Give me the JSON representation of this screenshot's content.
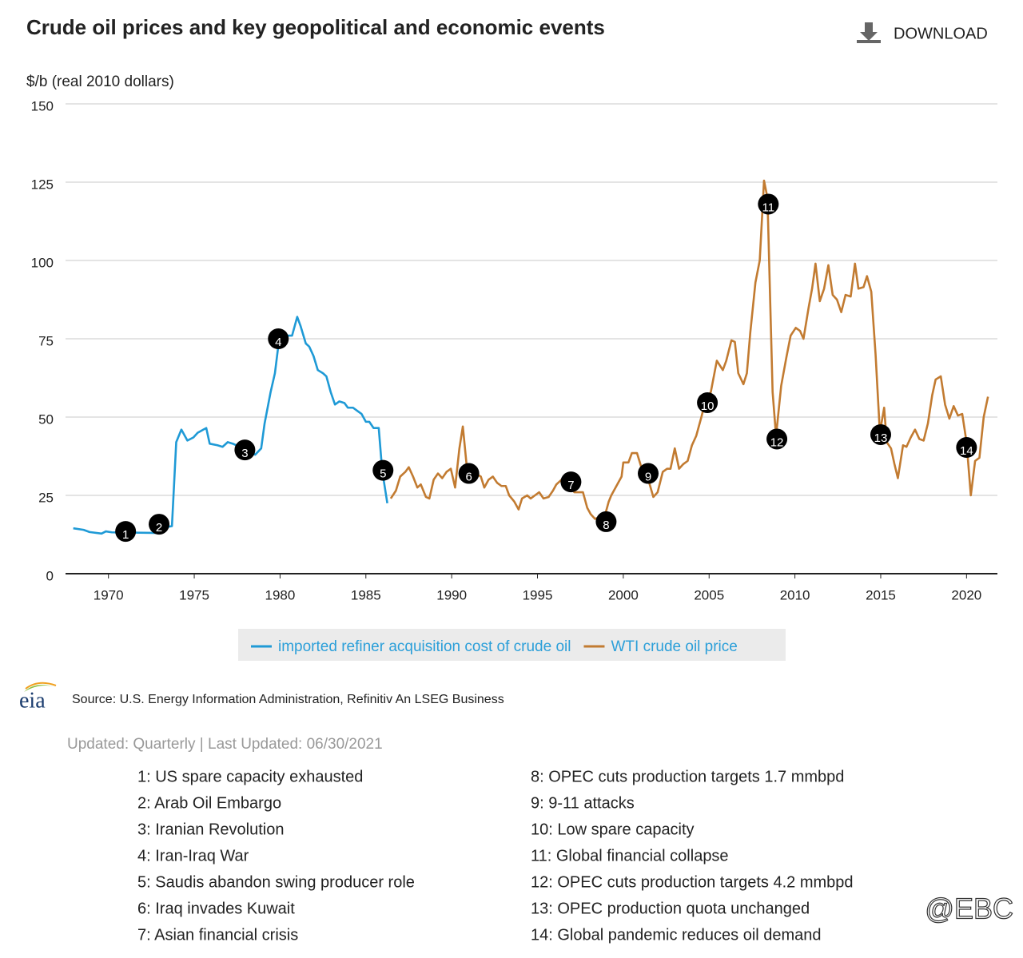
{
  "chart_data": {
    "type": "line",
    "title": "Crude oil prices and key geopolitical and economic events",
    "ylabel": "$/b (real 2010 dollars)",
    "xlim": [
      1967.5,
      2021.8
    ],
    "ylim": [
      0,
      150
    ],
    "xticks": [
      1970,
      1975,
      1980,
      1985,
      1990,
      1995,
      2000,
      2005,
      2010,
      2015,
      2020
    ],
    "yticks": [
      0,
      25,
      50,
      75,
      100,
      125,
      150
    ],
    "grid": true,
    "legend": "bottom",
    "series": [
      {
        "name": "imported refiner acquisition cost of crude oil",
        "color": "#1f9ad6",
        "x": [
          1967.95,
          1968.55,
          1968.9,
          1969.6,
          1969.85,
          1970.2,
          1973.0,
          1973.5,
          1973.7,
          1973.95,
          1974.25,
          1974.6,
          1974.95,
          1975.2,
          1975.7,
          1975.9,
          1976.35,
          1976.65,
          1976.95,
          1977.25,
          1977.85,
          1978.55,
          1978.9,
          1979.1,
          1979.45,
          1979.7,
          1979.95,
          1980.4,
          1980.7,
          1981.0,
          1981.2,
          1981.5,
          1981.7,
          1981.95,
          1982.2,
          1982.5,
          1982.7,
          1982.95,
          1983.2,
          1983.45,
          1983.75,
          1983.95,
          1984.25,
          1984.5,
          1984.75,
          1985.0,
          1985.2,
          1985.45,
          1985.75,
          1985.95,
          1986.25
        ],
        "values": [
          14.5,
          14,
          13.3,
          12.8,
          13.5,
          13.2,
          13,
          15,
          15.2,
          42,
          46,
          42.5,
          43.5,
          45,
          46.5,
          41.5,
          41,
          40.5,
          42,
          41.5,
          40,
          38,
          40,
          48,
          58,
          64,
          75,
          76,
          76,
          82,
          79,
          73.5,
          72.5,
          69.5,
          65,
          64,
          63,
          58,
          54,
          55,
          54.5,
          53,
          53,
          52,
          51,
          48.5,
          48.5,
          46.5,
          46.5,
          33,
          22.5
        ]
      },
      {
        "name": "WTI crude oil price",
        "color": "#c27b31",
        "x": [
          1986.45,
          1986.75,
          1987.0,
          1987.3,
          1987.5,
          1987.75,
          1988.0,
          1988.2,
          1988.5,
          1988.7,
          1988.95,
          1989.2,
          1989.45,
          1989.7,
          1989.95,
          1990.2,
          1990.45,
          1990.65,
          1990.9,
          1991.2,
          1991.4,
          1991.7,
          1991.9,
          1992.15,
          1992.4,
          1992.65,
          1992.9,
          1993.15,
          1993.35,
          1993.65,
          1993.9,
          1994.1,
          1994.4,
          1994.6,
          1994.85,
          1995.1,
          1995.35,
          1995.65,
          1995.9,
          1996.1,
          1996.4,
          1996.6,
          1996.9,
          1997.15,
          1997.4,
          1997.65,
          1997.9,
          1998.1,
          1998.35,
          1998.6,
          1998.9,
          1999.15,
          1999.3,
          1999.6,
          1999.9,
          2000.0,
          2000.3,
          2000.5,
          2000.8,
          2001.05,
          2001.3,
          2001.75,
          2002.0,
          2002.3,
          2002.55,
          2002.75,
          2003.0,
          2003.25,
          2003.5,
          2003.75,
          2004.0,
          2004.25,
          2004.55,
          2004.8,
          2005.1,
          2005.45,
          2005.8,
          2006.0,
          2006.3,
          2006.5,
          2006.7,
          2007.0,
          2007.2,
          2007.4,
          2007.7,
          2007.95,
          2008.2,
          2008.4,
          2008.7,
          2008.9,
          2009.2,
          2009.5,
          2009.75,
          2010.05,
          2010.3,
          2010.5,
          2010.8,
          2011.0,
          2011.2,
          2011.45,
          2011.7,
          2011.95,
          2012.2,
          2012.45,
          2012.7,
          2012.95,
          2013.25,
          2013.5,
          2013.7,
          2014.0,
          2014.2,
          2014.45,
          2014.7,
          2014.95,
          2015.2,
          2015.35,
          2015.6,
          2015.8,
          2016.0,
          2016.3,
          2016.5,
          2016.75,
          2017.0,
          2017.25,
          2017.5,
          2017.75,
          2018.0,
          2018.2,
          2018.5,
          2018.75,
          2019.0,
          2019.25,
          2019.5,
          2019.75,
          2020.0,
          2020.25,
          2020.5,
          2020.75,
          2021.0,
          2021.25
        ],
        "values": [
          24,
          26.5,
          31,
          32.5,
          34,
          31,
          27.5,
          28.5,
          24.5,
          24,
          30,
          32,
          30.5,
          32.5,
          33.5,
          27.5,
          40,
          47,
          33,
          31.5,
          32,
          31,
          27.5,
          30,
          31,
          29,
          28,
          28,
          25,
          23,
          20.5,
          24,
          25,
          24,
          25,
          26,
          24,
          24.5,
          26.5,
          28.5,
          30,
          29.5,
          28,
          26,
          26,
          26,
          21,
          19,
          17.5,
          18,
          18,
          23,
          25,
          28,
          31,
          35.5,
          35.5,
          38.5,
          38.5,
          34,
          33,
          24.5,
          26,
          32.5,
          33.5,
          33.5,
          40,
          33.5,
          35,
          36,
          41,
          44,
          50,
          55.5,
          58,
          68,
          65,
          68,
          74.5,
          74,
          64,
          60.5,
          64,
          77,
          93,
          100,
          125.5,
          120,
          58,
          44,
          60,
          69,
          76,
          78.5,
          77.5,
          75,
          85,
          91,
          99,
          87,
          91,
          98.5,
          89,
          87.5,
          83.5,
          89,
          88.5,
          99,
          91,
          91.5,
          95,
          90,
          70,
          45,
          53,
          42,
          40,
          35,
          30.5,
          41,
          40.5,
          43.5,
          46,
          43,
          42.5,
          48,
          57,
          62,
          63,
          54,
          49.5,
          53.5,
          50.5,
          51,
          42,
          25,
          36,
          37,
          50,
          56.5
        ]
      }
    ],
    "annotations": [
      {
        "label": "1",
        "x": 1971.0,
        "y": 13.5
      },
      {
        "label": "2",
        "x": 1972.95,
        "y": 15.8
      },
      {
        "label": "3",
        "x": 1977.95,
        "y": 39.5
      },
      {
        "label": "4",
        "x": 1979.9,
        "y": 75
      },
      {
        "label": "5",
        "x": 1986.0,
        "y": 33
      },
      {
        "label": "6",
        "x": 1991.0,
        "y": 32
      },
      {
        "label": "7",
        "x": 1996.95,
        "y": 29.3
      },
      {
        "label": "8",
        "x": 1999.0,
        "y": 16.6
      },
      {
        "label": "9",
        "x": 2001.45,
        "y": 32
      },
      {
        "label": "10",
        "x": 2004.9,
        "y": 54.6
      },
      {
        "label": "11",
        "x": 2008.45,
        "y": 118
      },
      {
        "label": "12",
        "x": 2008.95,
        "y": 43
      },
      {
        "label": "13",
        "x": 2015.0,
        "y": 44.4
      },
      {
        "label": "14",
        "x": 2020.0,
        "y": 40.3
      }
    ]
  },
  "download": "DOWNLOAD",
  "logo": "eia",
  "source": "Source: U.S. Energy Information Administration, Refinitiv An LSEG Business",
  "updated": "Updated: Quarterly | Last Updated: 06/30/2021",
  "events": [
    "1: US spare capacity exhausted",
    "2: Arab Oil Embargo",
    "3: Iranian Revolution",
    "4: Iran-Iraq War",
    "5: Saudis abandon swing producer role",
    "6: Iraq invades Kuwait",
    "7: Asian financial crisis",
    "8: OPEC cuts production targets 1.7 mmbpd",
    "9: 9-11 attacks",
    "10: Low spare capacity",
    "11: Global financial collapse",
    "12: OPEC cuts production targets 4.2 mmbpd",
    "13: OPEC production quota unchanged",
    "14: Global pandemic reduces oil demand"
  ],
  "watermark": "@EBC"
}
